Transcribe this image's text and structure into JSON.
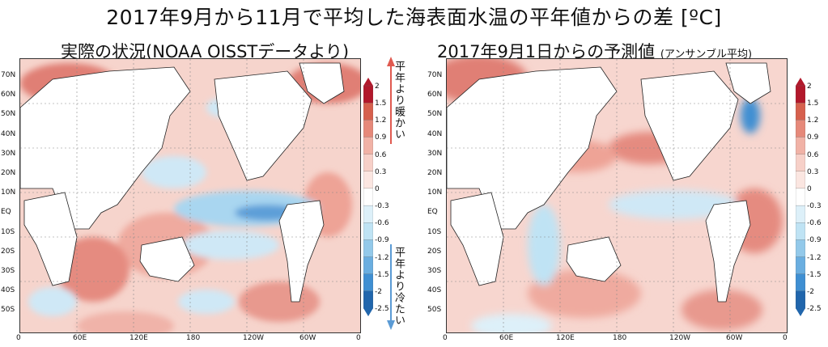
{
  "title": "2017年9月から11月で平均した海表面水温の平年値からの差 [ºC]",
  "left_panel": {
    "title": "実際の状況(NOAA OISSTデータより)",
    "lat_labels": [
      "70N",
      "60N",
      "50N",
      "40N",
      "30N",
      "20N",
      "10N",
      "EQ",
      "10S",
      "20S",
      "30S",
      "40S",
      "50S"
    ],
    "lon_labels": [
      "0",
      "60E",
      "120E",
      "180",
      "120W",
      "60W",
      "0"
    ]
  },
  "right_panel": {
    "title": "2017年9月1日からの予測値",
    "subtitle": "(アンサンブル平均)",
    "lat_labels": [
      "70N",
      "60N",
      "50N",
      "40N",
      "30N",
      "20N",
      "10N",
      "EQ",
      "10S",
      "20S",
      "30S",
      "40S",
      "50S"
    ],
    "lon_labels": [
      "0",
      "60E",
      "120E",
      "180",
      "120W",
      "60W",
      "0"
    ]
  },
  "colorbar": {
    "ticks": [
      "2",
      "1.5",
      "1.2",
      "0.9",
      "0.6",
      "0.3",
      "0",
      "-0.3",
      "-0.6",
      "-0.9",
      "-1.2",
      "-1.5",
      "-2",
      "-2.5"
    ],
    "colors": [
      "#b2182b",
      "#d6604d",
      "#e6897a",
      "#f1b2a6",
      "#f7d0c8",
      "#fbe6e1",
      "#ffffff",
      "#ddf0f9",
      "#bfe3f4",
      "#93c9ea",
      "#6aaee0",
      "#3f8fd2",
      "#2166ac"
    ],
    "warm_note": "平年より暖かい",
    "cold_note": "平年より冷たい",
    "warm_color": "#e05a50",
    "cold_color": "#5b9bd5"
  }
}
